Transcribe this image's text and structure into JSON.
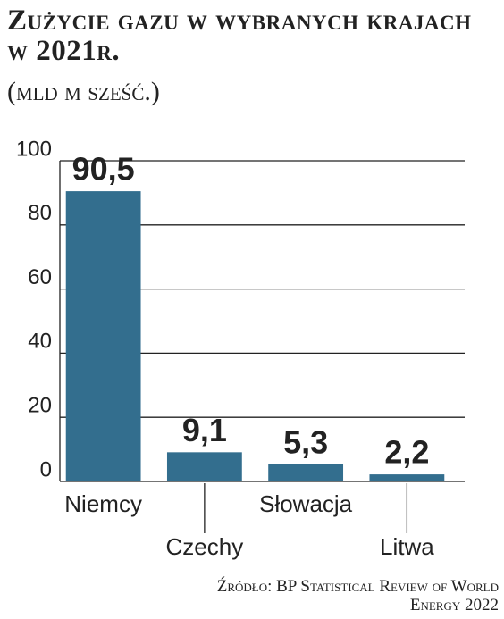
{
  "chart_data": {
    "type": "bar",
    "title": "Zużycie gazu w wybranych krajach w 2021r.",
    "subtitle": "(mld m sześć.)",
    "categories": [
      "Niemcy",
      "Czechy",
      "Słowacja",
      "Litwa"
    ],
    "values": [
      90.5,
      9.1,
      5.3,
      2.2
    ],
    "value_labels": [
      "90,5",
      "9,1",
      "5,3",
      "2,2"
    ],
    "color": "#336e8e",
    "ylim": [
      0,
      100
    ],
    "yticks": [
      0,
      20,
      40,
      60,
      80,
      100
    ],
    "grid": true,
    "source": "Źródło: BP Statistical Review of World Energy 2022"
  }
}
